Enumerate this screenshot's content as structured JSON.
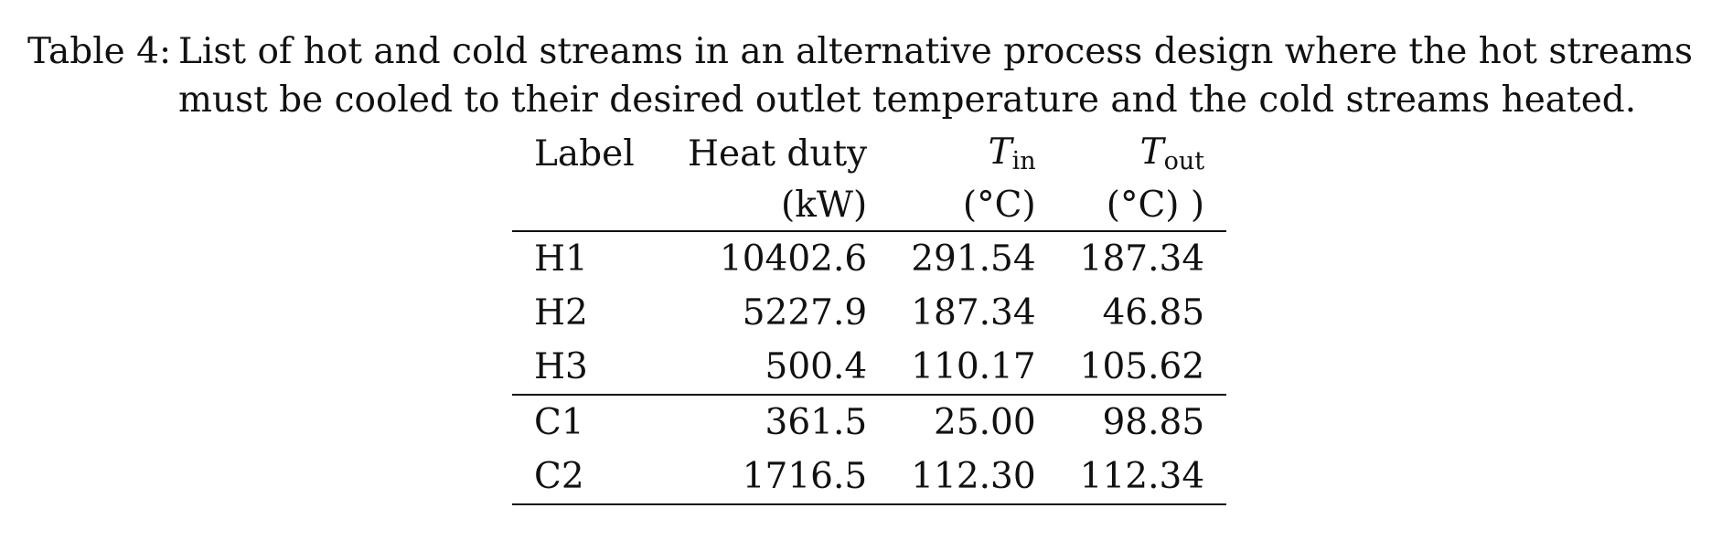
{
  "caption": {
    "label": "Table 4:",
    "line1": "List of hot and cold streams in an alternative process design where the hot streams",
    "line2": "must be cooled to their desired outlet temperature and the cold streams heated."
  },
  "table": {
    "headers": {
      "label": "Label",
      "duty": "Heat duty",
      "duty_unit": "(kW)",
      "tin_symbol": "T",
      "tin_sub": "in",
      "tin_unit": "(°C)",
      "tout_symbol": "T",
      "tout_sub": "out",
      "tout_unit": "(°C) )"
    },
    "rows": [
      {
        "label": "H1",
        "duty": "10402.6",
        "tin": "291.54",
        "tout": "187.34"
      },
      {
        "label": "H2",
        "duty": "5227.9",
        "tin": "187.34",
        "tout": "46.85"
      },
      {
        "label": "H3",
        "duty": "500.4",
        "tin": "110.17",
        "tout": "105.62"
      },
      {
        "label": "C1",
        "duty": "361.5",
        "tin": "25.00",
        "tout": "98.85"
      },
      {
        "label": "C2",
        "duty": "1716.5",
        "tin": "112.30",
        "tout": "112.34"
      }
    ]
  }
}
